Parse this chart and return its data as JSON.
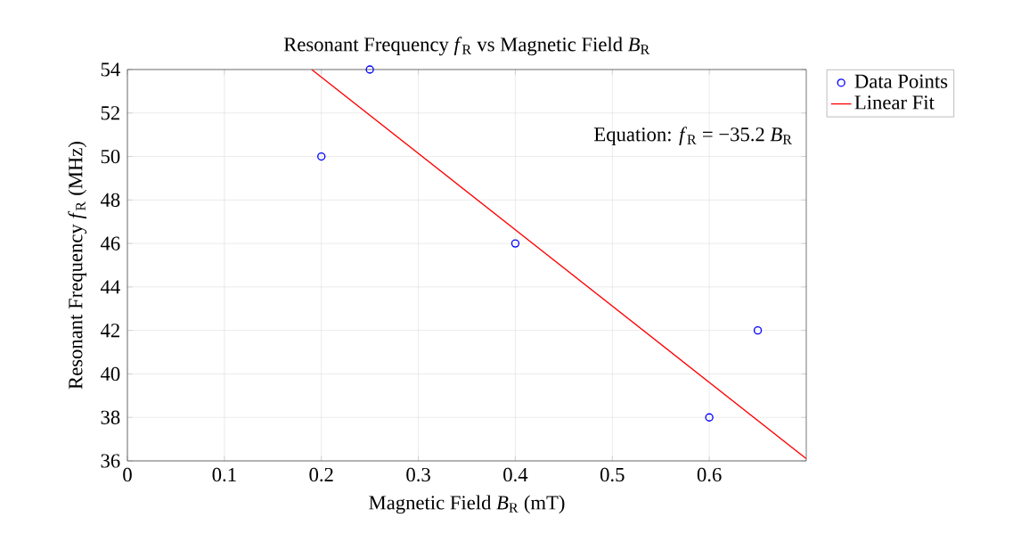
{
  "chart_data": {
    "type": "scatter",
    "title": "Resonant Frequency *f*$_{R}$ vs Magnetic Field *B*$_{R}$",
    "xlabel": "Magnetic Field *B*$_{R}$ (mT)",
    "ylabel": "Resonant Frequency *f*$_{R}$ (MHz)",
    "series": [
      {
        "name": "Data Points",
        "color": "#0000ff",
        "marker": "circle",
        "x": [
          0.2,
          0.25,
          0.4,
          0.6,
          0.65
        ],
        "values": [
          50,
          54,
          46,
          38,
          42
        ]
      },
      {
        "name": "Linear Fit",
        "type": "line",
        "color": "#ff0000",
        "marker": "none",
        "x": [
          0.19,
          0.7
        ],
        "values": [
          54.0,
          36.1
        ]
      }
    ],
    "xlim": [
      0,
      0.7
    ],
    "xticks": [
      0,
      0.1,
      0.2,
      0.3,
      0.4,
      0.5,
      0.6
    ],
    "ylim": [
      36,
      54
    ],
    "yticks": [
      36,
      38,
      40,
      42,
      44,
      46,
      48,
      50,
      52,
      54
    ],
    "grid": true,
    "legend": "top right",
    "annotations": [
      "Equation: *f*$_{R}$ = −35.2 *B*$_{R}$"
    ]
  }
}
